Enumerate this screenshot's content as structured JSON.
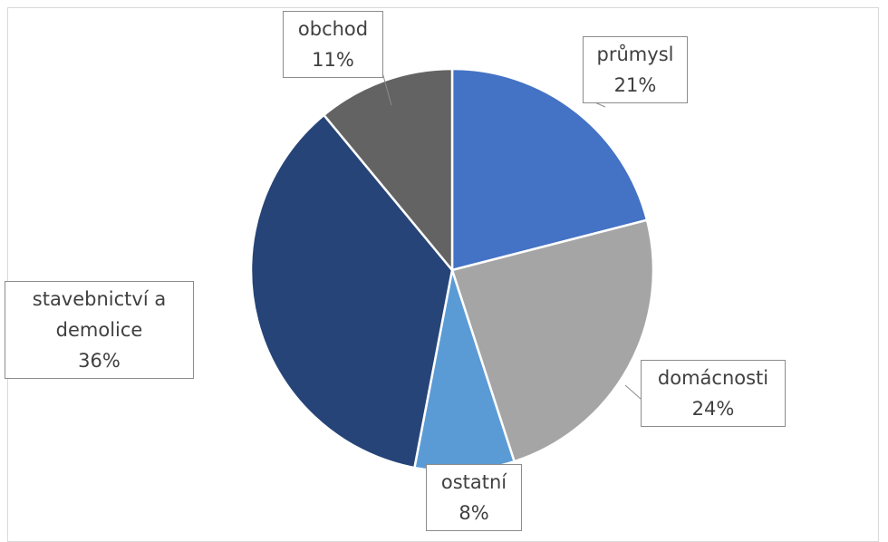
{
  "chart_data": {
    "type": "pie",
    "categories": [
      "průmysl",
      "domácnosti",
      "ostatní",
      "stavebnictví a demolice",
      "obchod"
    ],
    "values": [
      21,
      24,
      8,
      36,
      11
    ],
    "value_labels": [
      "21%",
      "24%",
      "8%",
      "36%",
      "11%"
    ],
    "colors": [
      "#4472c4",
      "#a5a5a5",
      "#5b9bd5",
      "#264478",
      "#636363"
    ]
  }
}
